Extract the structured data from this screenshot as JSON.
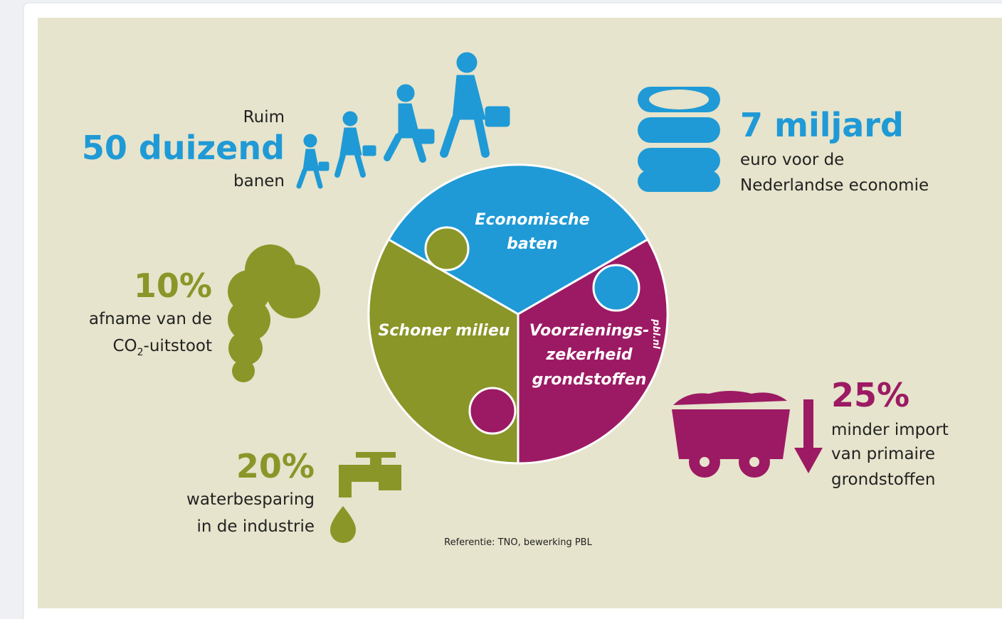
{
  "jobs": {
    "prefix": "Ruim",
    "figure": "50 duizend",
    "label": "banen"
  },
  "economy": {
    "figure": "7 miljard",
    "lines": [
      "euro voor de",
      "Nederlandse economie"
    ]
  },
  "co2": {
    "figure": "10%",
    "line1": "afname van de",
    "line2": {
      "prefix": "CO",
      "subscript": "2",
      "suffix": "-uitstoot"
    }
  },
  "water": {
    "figure": "20%",
    "lines": [
      "waterbesparing",
      "in de industrie"
    ]
  },
  "import": {
    "figure": "25%",
    "lines": [
      "minder import",
      "van primaire",
      "grondstoffen"
    ]
  },
  "puzzle": {
    "economic": [
      "Economische",
      "baten"
    ],
    "environment": [
      "Schoner milieu"
    ],
    "supply": [
      "Voorzienings-",
      "zekerheid",
      "grondstoffen"
    ],
    "watermark": "pbl.nl"
  },
  "source": "Referentie: TNO, bewerking PBL"
}
